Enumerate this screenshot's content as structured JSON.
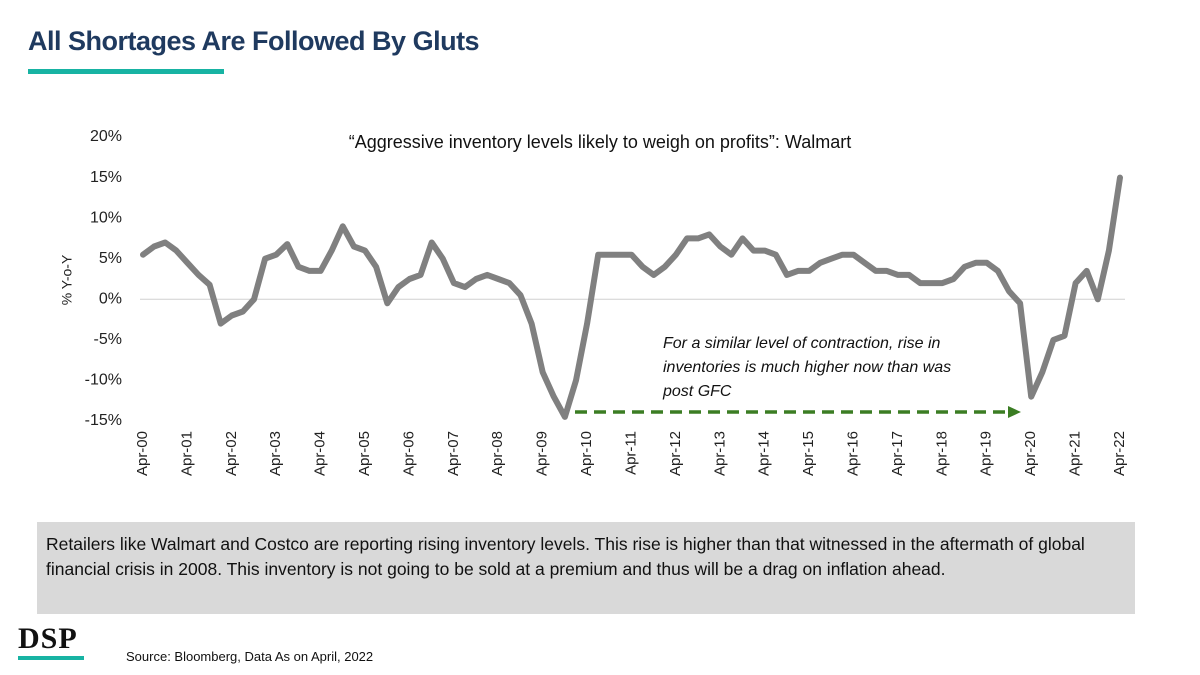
{
  "title": "All Shortages Are Followed By Gluts",
  "chart_data": {
    "type": "line",
    "title": "“Aggressive inventory levels likely to weigh on profits”: Walmart",
    "y_label": "% Y-o-Y",
    "categories": [
      "Apr-00",
      null,
      null,
      null,
      "Apr-01",
      null,
      null,
      null,
      "Apr-02",
      null,
      null,
      null,
      "Apr-03",
      null,
      null,
      null,
      "Apr-04",
      null,
      null,
      null,
      "Apr-05",
      null,
      null,
      null,
      "Apr-06",
      null,
      null,
      null,
      "Apr-07",
      null,
      null,
      null,
      "Apr-08",
      null,
      null,
      null,
      "Apr-09",
      null,
      null,
      null,
      "Apr-10",
      null,
      null,
      null,
      "Apr-11",
      null,
      null,
      null,
      "Apr-12",
      null,
      null,
      null,
      "Apr-13",
      null,
      null,
      null,
      "Apr-14",
      null,
      null,
      null,
      "Apr-15",
      null,
      null,
      null,
      "Apr-16",
      null,
      null,
      null,
      "Apr-17",
      null,
      null,
      null,
      "Apr-18",
      null,
      null,
      null,
      "Apr-19",
      null,
      null,
      null,
      "Apr-20",
      null,
      null,
      null,
      "Apr-21",
      null,
      null,
      null,
      "Apr-22"
    ],
    "series": [
      {
        "color": "#808080",
        "values": [
          5.5,
          6.5,
          7,
          6,
          4.5,
          3,
          1.8,
          -3,
          -2,
          -1.5,
          0,
          5,
          5.5,
          6.8,
          4,
          3.5,
          3.5,
          6,
          9,
          6.5,
          6,
          4,
          -0.5,
          1.5,
          2.5,
          3,
          7,
          5,
          2,
          1.5,
          2.5,
          3,
          2.5,
          2,
          0.5,
          -3,
          -9,
          -12,
          -14.5,
          -10,
          -3,
          5.5,
          5.5,
          5.5,
          5.5,
          4,
          3,
          4,
          5.5,
          7.5,
          7.5,
          8,
          6.5,
          5.5,
          7.5,
          6,
          6,
          5.5,
          3,
          3.5,
          3.5,
          4.5,
          5,
          5.5,
          5.5,
          4.5,
          3.5,
          3.5,
          3,
          3,
          2,
          2,
          2,
          2.5,
          4,
          4.5,
          4.5,
          3.5,
          1,
          -0.5,
          -12,
          -9,
          -5,
          -4.5,
          2,
          3.5,
          0,
          6,
          15
        ]
      }
    ],
    "ylim": [
      -15,
      20
    ],
    "yticks": [
      {
        "value": -15,
        "label": "-15%"
      },
      {
        "value": -10,
        "label": "-10%"
      },
      {
        "value": -5,
        "label": "-5%"
      },
      {
        "value": 0,
        "label": "0%"
      },
      {
        "value": 5,
        "label": "5%"
      },
      {
        "value": 10,
        "label": "10%"
      },
      {
        "value": 15,
        "label": "15%"
      },
      {
        "value": 20,
        "label": "20%"
      }
    ],
    "annotation": [
      "For  a similar level of contraction, rise in",
      "inventories is much higher now than was",
      "post GFC"
    ]
  },
  "footer_text": "Retailers like Walmart and Costco are reporting rising inventory levels. This rise is higher than that witnessed in the aftermath of global financial crisis in 2008. This inventory is not going to be sold at a premium and thus will be a drag on inflation ahead.",
  "logo": "DSP",
  "source": "Source:  Bloomberg,  Data As on April, 2022"
}
